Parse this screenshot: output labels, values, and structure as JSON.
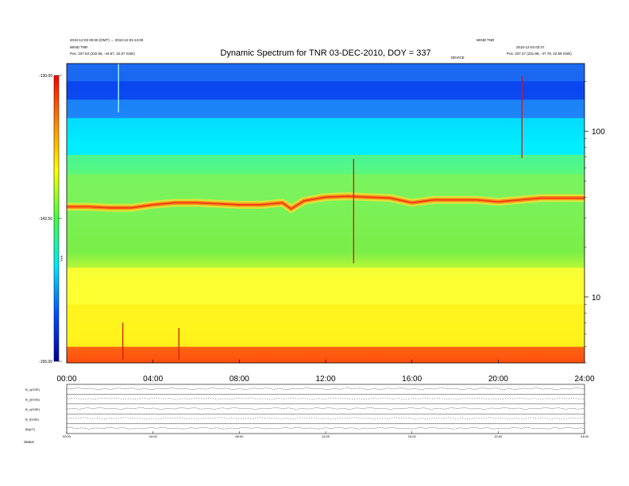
{
  "header": {
    "title": "Dynamic Spectrum for TNR 03-DEC-2010, DOY = 337",
    "left_small": [
      "2010-12-03 00:00 (GMT) → 2010-12-03 24:00",
      "WIND TNR",
      "Pos. 237.53 (232.55, -44.57, 22.57 GSE)"
    ],
    "right_small": [
      "WIND TNR",
      "2010-12-03 03:47",
      "Pos. 237.47 (231.68, -47.79, 22.59 GSE)"
    ],
    "center_small": "DEVICE"
  },
  "chart_data": [
    {
      "type": "heatmap",
      "title": "Dynamic Spectrum for TNR 03-DEC-2010, DOY = 337",
      "x_ticks": [
        "00:00",
        "04:00",
        "08:00",
        "12:00",
        "16:00",
        "20:00",
        "24:00"
      ],
      "x_range_hours": [
        0,
        24
      ],
      "y_scale": "log",
      "y_ticks": [
        "100",
        "10"
      ],
      "y_range_khz": [
        4,
        256
      ],
      "colorbar": {
        "label": "TNR",
        "ticks": [
          "-130.00",
          "-142.50",
          "-155.00"
        ],
        "range": [
          -155.0,
          -130.0
        ],
        "colors": [
          "#0000a0",
          "#0050ff",
          "#00e8ff",
          "#40ff40",
          "#ffff00",
          "#ff8800",
          "#ff0000"
        ]
      },
      "bands": [
        {
          "from_khz": 256,
          "to_khz": 200,
          "color": "#1c6af0"
        },
        {
          "from_khz": 200,
          "to_khz": 155,
          "color": "#0a45f0"
        },
        {
          "from_khz": 155,
          "to_khz": 120,
          "color": "#1f88f8"
        },
        {
          "from_khz": 120,
          "to_khz": 72,
          "color": "#00eeff"
        },
        {
          "from_khz": 72,
          "to_khz": 55,
          "color": "#5cf87a"
        },
        {
          "from_khz": 55,
          "to_khz": 40,
          "color": "#7df25b"
        },
        {
          "from_khz": 15,
          "to_khz": 9,
          "color": "#ffff33"
        },
        {
          "from_khz": 9,
          "to_khz": 5,
          "color": "#fff21a"
        },
        {
          "from_khz": 5,
          "to_khz": 4,
          "color": "#ff5511"
        }
      ],
      "plasma_line": {
        "hours": [
          0,
          1,
          2,
          3,
          4,
          5,
          6,
          7,
          8,
          9,
          10,
          10.4,
          11,
          12,
          13,
          14,
          15,
          16,
          17,
          18,
          19,
          20,
          21,
          22,
          23,
          24
        ],
        "khz": [
          35,
          35,
          34.5,
          34.5,
          36,
          37,
          37,
          36.5,
          36,
          36,
          37,
          34,
          38,
          40,
          40.5,
          40,
          39.5,
          37,
          38.5,
          38.5,
          38.5,
          37.5,
          38.5,
          39.5,
          39.5,
          39.5
        ]
      },
      "spikes": [
        {
          "hour": 2.6,
          "from_khz": 7,
          "to_khz": 4.2,
          "color": "#cc2000"
        },
        {
          "hour": 5.2,
          "from_khz": 6.5,
          "to_khz": 4.2,
          "color": "#cc2000"
        },
        {
          "hour": 13.3,
          "from_khz": 68,
          "to_khz": 16,
          "color": "#dd1010"
        },
        {
          "hour": 21.1,
          "from_khz": 215,
          "to_khz": 69,
          "color": "#dd1010"
        },
        {
          "hour": 2.4,
          "from_khz": 256,
          "to_khz": 130,
          "color": "#a8fff0"
        }
      ]
    },
    {
      "type": "line",
      "title": "",
      "x_ticks": [
        "00:00",
        "04:00",
        "08:00",
        "12:00",
        "16:00",
        "20:00",
        "24:00"
      ],
      "x_range_hours": [
        0,
        24
      ],
      "panels": [
        {
          "label": "B_x(GSE)"
        },
        {
          "label": "B_y(GSE)"
        },
        {
          "label": "B_z(GSE)"
        },
        {
          "label": "B_t(GSE)"
        },
        {
          "label": "|B|(nT)"
        }
      ],
      "bottom_label": "Status"
    }
  ]
}
